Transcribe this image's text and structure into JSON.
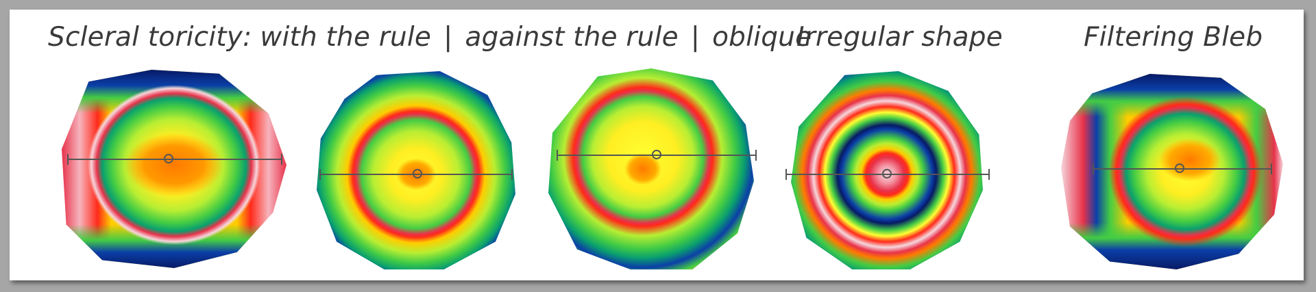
{
  "captions": {
    "toricity_prefix": "Scleral toricity:",
    "with_rule": "with the rule",
    "separator": "|",
    "against_rule": "against the rule",
    "oblique": "oblique",
    "irregular": "Irregular shape",
    "bleb": "Filtering Bleb"
  },
  "colors": {
    "background": "#ffffff",
    "frame": "#a6a6a6",
    "text": "#3a3a3a",
    "scale": [
      "#f6d6dc",
      "#e8324a",
      "#ff2a1a",
      "#ff7a00",
      "#ffcc00",
      "#ffff33",
      "#b8ee33",
      "#44cc44",
      "#0aa06e",
      "#0b3fa8",
      "#071a66"
    ]
  }
}
